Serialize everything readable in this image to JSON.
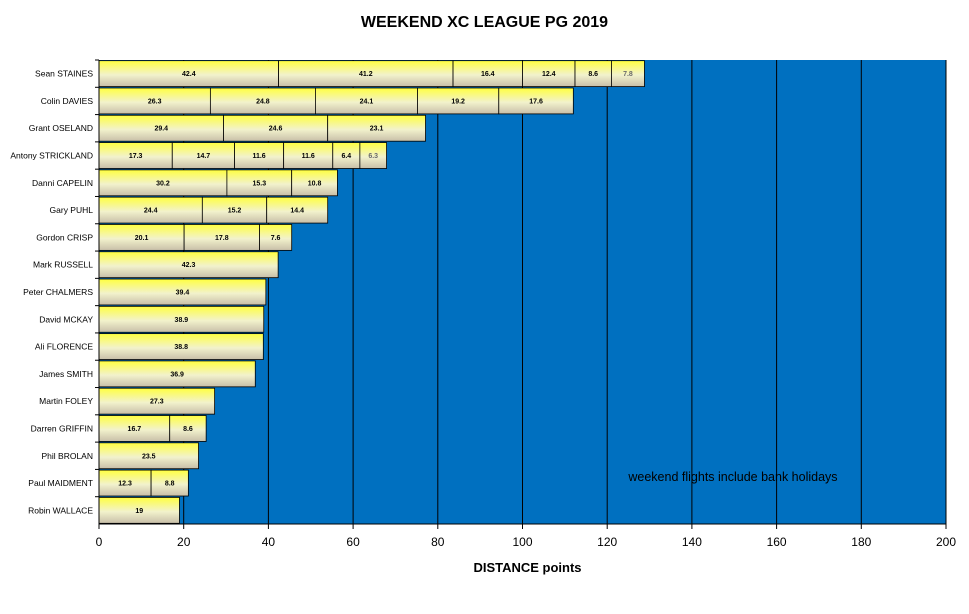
{
  "chart_data": {
    "type": "bar",
    "orientation": "horizontal",
    "stacked": true,
    "title": "WEEKEND XC LEAGUE PG 2019",
    "xlabel": "DISTANCE  points",
    "ylabel": "",
    "xlim": [
      0,
      200
    ],
    "x_ticks": [
      0,
      20,
      40,
      60,
      80,
      100,
      120,
      140,
      160,
      180,
      200
    ],
    "grid": "vertical major gridlines",
    "plot_background": "#0070C0",
    "bar_gradient": [
      "#FFFF40",
      "#F2F2CC",
      "#C8BFA8"
    ],
    "annotation": "weekend flights include bank holidays",
    "pilots": [
      {
        "name": "Sean STAINES",
        "flights": [
          42.4,
          41.2,
          16.4,
          12.4,
          8.6,
          7.8
        ]
      },
      {
        "name": "Colin DAVIES",
        "flights": [
          26.3,
          24.8,
          24.1,
          19.2,
          17.6
        ]
      },
      {
        "name": "Grant OSELAND",
        "flights": [
          29.4,
          24.6,
          23.1
        ]
      },
      {
        "name": "Antony STRICKLAND",
        "flights": [
          17.3,
          14.7,
          11.6,
          11.6,
          6.4,
          6.3
        ]
      },
      {
        "name": "Danni CAPELIN",
        "flights": [
          30.2,
          15.3,
          10.8
        ]
      },
      {
        "name": "Gary PUHL",
        "flights": [
          24.4,
          15.2,
          14.4
        ]
      },
      {
        "name": "Gordon CRISP",
        "flights": [
          20.1,
          17.8,
          7.6
        ]
      },
      {
        "name": "Mark RUSSELL",
        "flights": [
          42.3
        ]
      },
      {
        "name": "Peter CHALMERS",
        "flights": [
          39.4
        ]
      },
      {
        "name": "David MCKAY",
        "flights": [
          38.9
        ]
      },
      {
        "name": "Ali FLORENCE",
        "flights": [
          38.8
        ]
      },
      {
        "name": "James SMITH",
        "flights": [
          36.9
        ]
      },
      {
        "name": "Martin FOLEY",
        "flights": [
          27.3
        ]
      },
      {
        "name": "Darren GRIFFIN",
        "flights": [
          16.7,
          8.6
        ]
      },
      {
        "name": "Phil BROLAN",
        "flights": [
          23.5
        ]
      },
      {
        "name": "Paul MAIDMENT",
        "flights": [
          12.3,
          8.8
        ]
      },
      {
        "name": "Robin WALLACE",
        "flights": [
          19
        ]
      }
    ]
  }
}
